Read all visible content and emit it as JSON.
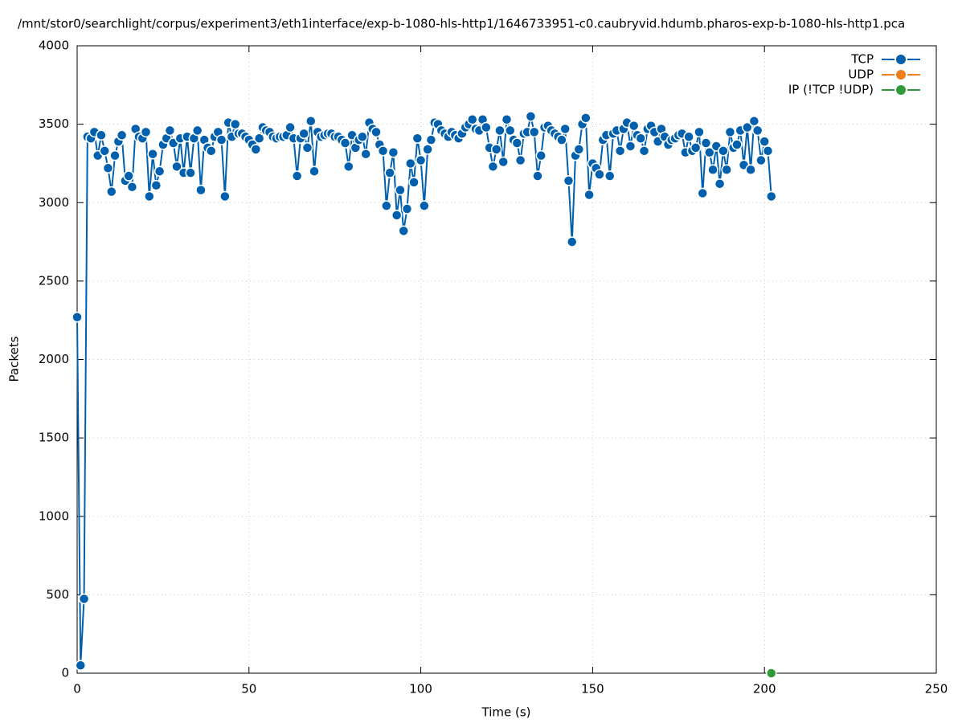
{
  "chart_data": {
    "type": "line",
    "title": "/mnt/stor0/searchlight/corpus/experiment3/eth1interface/exp-b-1080-hls-http1/1646733951-c0.caubryvid.hdumb.pharos-exp-b-1080-hls-http1.pca",
    "xlabel": "Time (s)",
    "ylabel": "Packets",
    "xlim": [
      0,
      250
    ],
    "xticks": [
      0,
      50,
      100,
      150,
      200,
      250
    ],
    "ylim": [
      0,
      4000
    ],
    "yticks": [
      0,
      500,
      1000,
      1500,
      2000,
      2500,
      3000,
      3500,
      4000
    ],
    "grid": true,
    "legend": "top-right",
    "series": [
      {
        "name": "TCP",
        "color": "#0060ad",
        "x": [
          0,
          1,
          2,
          3,
          4,
          5,
          6,
          7,
          8,
          9,
          10,
          11,
          12,
          13,
          14,
          15,
          16,
          17,
          18,
          19,
          20,
          21,
          22,
          23,
          24,
          25,
          26,
          27,
          28,
          29,
          30,
          31,
          32,
          33,
          34,
          35,
          36,
          37,
          38,
          39,
          40,
          41,
          42,
          43,
          44,
          45,
          46,
          47,
          48,
          49,
          50,
          51,
          52,
          53,
          54,
          55,
          56,
          57,
          58,
          59,
          60,
          61,
          62,
          63,
          64,
          65,
          66,
          67,
          68,
          69,
          70,
          71,
          72,
          73,
          74,
          75,
          76,
          77,
          78,
          79,
          80,
          81,
          82,
          83,
          84,
          85,
          86,
          87,
          88,
          89,
          90,
          91,
          92,
          93,
          94,
          95,
          96,
          97,
          98,
          99,
          100,
          101,
          102,
          103,
          104,
          105,
          106,
          107,
          108,
          109,
          110,
          111,
          112,
          113,
          114,
          115,
          116,
          117,
          118,
          119,
          120,
          121,
          122,
          123,
          124,
          125,
          126,
          127,
          128,
          129,
          130,
          131,
          132,
          133,
          134,
          135,
          136,
          137,
          138,
          139,
          140,
          141,
          142,
          143,
          144,
          145,
          146,
          147,
          148,
          149,
          150,
          151,
          152,
          153,
          154,
          155,
          156,
          157,
          158,
          159,
          160,
          161,
          162,
          163,
          164,
          165,
          166,
          167,
          168,
          169,
          170,
          171,
          172,
          173,
          174,
          175,
          176,
          177,
          178,
          179,
          180,
          181,
          182,
          183,
          184,
          185,
          186,
          187,
          188,
          189,
          190,
          191,
          192,
          193,
          194,
          195,
          196,
          197,
          198,
          199,
          200,
          201,
          202
        ],
        "values": [
          2270,
          50,
          474,
          3420,
          3410,
          3450,
          3300,
          3430,
          3330,
          3220,
          3070,
          3300,
          3390,
          3430,
          3140,
          3170,
          3100,
          3470,
          3420,
          3410,
          3450,
          3040,
          3310,
          3110,
          3200,
          3370,
          3410,
          3460,
          3380,
          3230,
          3410,
          3190,
          3420,
          3190,
          3410,
          3460,
          3080,
          3400,
          3350,
          3330,
          3420,
          3450,
          3400,
          3040,
          3510,
          3420,
          3500,
          3440,
          3440,
          3420,
          3400,
          3370,
          3340,
          3410,
          3480,
          3460,
          3450,
          3420,
          3410,
          3420,
          3420,
          3430,
          3480,
          3410,
          3170,
          3410,
          3440,
          3350,
          3520,
          3200,
          3450,
          3420,
          3430,
          3440,
          3440,
          3420,
          3420,
          3400,
          3380,
          3230,
          3430,
          3350,
          3400,
          3420,
          3310,
          3510,
          3470,
          3450,
          3370,
          3330,
          2980,
          3190,
          3320,
          2920,
          3080,
          2820,
          2960,
          3250,
          3130,
          3410,
          3270,
          2980,
          3340,
          3400,
          3510,
          3500,
          3460,
          3440,
          3420,
          3450,
          3430,
          3410,
          3440,
          3480,
          3500,
          3530,
          3470,
          3460,
          3530,
          3480,
          3350,
          3230,
          3340,
          3460,
          3260,
          3530,
          3460,
          3400,
          3380,
          3270,
          3440,
          3450,
          3550,
          3450,
          3170,
          3300,
          3480,
          3490,
          3460,
          3440,
          3420,
          3400,
          3470,
          3140,
          2750,
          3300,
          3340,
          3500,
          3540,
          3050,
          3250,
          3220,
          3180,
          3400,
          3430,
          3170,
          3440,
          3460,
          3330,
          3470,
          3510,
          3360,
          3490,
          3430,
          3410,
          3330,
          3470,
          3490,
          3450,
          3390,
          3470,
          3420,
          3370,
          3400,
          3410,
          3430,
          3440,
          3320,
          3420,
          3330,
          3350,
          3450,
          3060,
          3380,
          3320,
          3210,
          3360,
          3120,
          3330,
          3210,
          3450,
          3350,
          3370,
          3460,
          3240,
          3480,
          3210,
          3520,
          3460,
          3270,
          3390,
          3330,
          3040
        ]
      },
      {
        "name": "UDP",
        "color": "#f07e1b",
        "x": [],
        "values": []
      },
      {
        "name": "IP (!TCP  !UDP)",
        "color": "#2e9a3a",
        "x": [
          202
        ],
        "values": [
          0
        ]
      }
    ]
  }
}
